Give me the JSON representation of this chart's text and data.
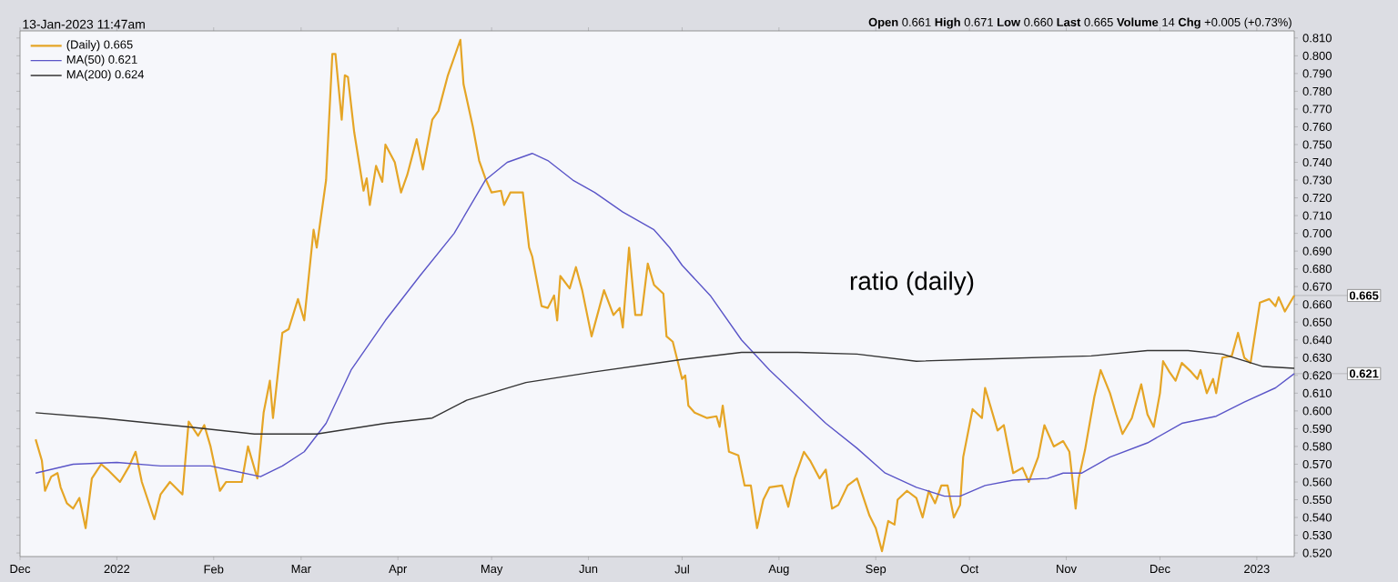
{
  "chart_data": {
    "type": "line",
    "subtitle": "13-Jan-2023 11:47am",
    "annotations": [
      "**Open** 0.661 **High** 0.671 **Low** 0.660 **Last** 0.665 **Volume** 14 **Chg** +0.005 (+0.73%)",
      "ratio (daily)",
      {
        "text": "0.665",
        "x": "2023-01-13",
        "y": 0.665
      },
      {
        "text": "0.621",
        "x": "2023-01-13",
        "y": 0.621
      }
    ],
    "xlim": [
      "2021-12-01",
      "2023-01-13"
    ],
    "xticks": [
      {
        "value": "2021-12-01",
        "label": "Dec"
      },
      {
        "value": "2022-01-01",
        "label": "2022"
      },
      {
        "value": "2022-02-01",
        "label": "Feb"
      },
      {
        "value": "2022-03-01",
        "label": "Mar"
      },
      {
        "value": "2022-04-01",
        "label": "Apr"
      },
      {
        "value": "2022-05-01",
        "label": "May"
      },
      {
        "value": "2022-06-01",
        "label": "Jun"
      },
      {
        "value": "2022-07-01",
        "label": "Jul"
      },
      {
        "value": "2022-08-01",
        "label": "Aug"
      },
      {
        "value": "2022-09-01",
        "label": "Sep"
      },
      {
        "value": "2022-10-01",
        "label": "Oct"
      },
      {
        "value": "2022-11-01",
        "label": "Nov"
      },
      {
        "value": "2022-12-01",
        "label": "Dec"
      },
      {
        "value": "2023-01-01",
        "label": "2023"
      }
    ],
    "ylim": [
      0.518,
      0.814
    ],
    "yticks": [
      {
        "value": 0.52,
        "label": "0.520"
      },
      {
        "value": 0.53,
        "label": "0.530"
      },
      {
        "value": 0.54,
        "label": "0.540"
      },
      {
        "value": 0.55,
        "label": "0.550"
      },
      {
        "value": 0.56,
        "label": "0.560"
      },
      {
        "value": 0.57,
        "label": "0.570"
      },
      {
        "value": 0.58,
        "label": "0.580"
      },
      {
        "value": 0.59,
        "label": "0.590"
      },
      {
        "value": 0.6,
        "label": "0.600"
      },
      {
        "value": 0.61,
        "label": "0.610"
      },
      {
        "value": 0.62,
        "label": "0.620"
      },
      {
        "value": 0.63,
        "label": "0.630"
      },
      {
        "value": 0.64,
        "label": "0.640"
      },
      {
        "value": 0.65,
        "label": "0.650"
      },
      {
        "value": 0.66,
        "label": "0.660"
      },
      {
        "value": 0.67,
        "label": "0.670"
      },
      {
        "value": 0.68,
        "label": "0.680"
      },
      {
        "value": 0.69,
        "label": "0.690"
      },
      {
        "value": 0.7,
        "label": "0.700"
      },
      {
        "value": 0.71,
        "label": "0.710"
      },
      {
        "value": 0.72,
        "label": "0.720"
      },
      {
        "value": 0.73,
        "label": "0.730"
      },
      {
        "value": 0.74,
        "label": "0.740"
      },
      {
        "value": 0.75,
        "label": "0.750"
      },
      {
        "value": 0.76,
        "label": "0.760"
      },
      {
        "value": 0.77,
        "label": "0.770"
      },
      {
        "value": 0.78,
        "label": "0.780"
      },
      {
        "value": 0.79,
        "label": "0.790"
      },
      {
        "value": 0.8,
        "label": "0.800"
      },
      {
        "value": 0.81,
        "label": "0.810"
      }
    ],
    "legend": "top left",
    "marker": "none",
    "line_style": "solid",
    "series": [
      {
        "name": "(Daily) 0.665",
        "color": "#e5a526",
        "x": [
          "2021-12-06",
          "2021-12-08",
          "2021-12-09",
          "2021-12-11",
          "2021-12-13",
          "2021-12-14",
          "2021-12-16",
          "2021-12-18",
          "2021-12-20",
          "2021-12-22",
          "2021-12-24",
          "2021-12-27",
          "2021-12-29",
          "2022-01-02",
          "2022-01-05",
          "2022-01-07",
          "2022-01-09",
          "2022-01-13",
          "2022-01-15",
          "2022-01-18",
          "2022-01-22",
          "2022-01-24",
          "2022-01-27",
          "2022-01-29",
          "2022-01-31",
          "2022-02-03",
          "2022-02-05",
          "2022-02-10",
          "2022-02-12",
          "2022-02-15",
          "2022-02-17",
          "2022-02-19",
          "2022-02-20",
          "2022-02-23",
          "2022-02-25",
          "2022-02-28",
          "2022-03-02",
          "2022-03-05",
          "2022-03-06",
          "2022-03-09",
          "2022-03-11",
          "2022-03-12",
          "2022-03-14",
          "2022-03-15",
          "2022-03-16",
          "2022-03-18",
          "2022-03-21",
          "2022-03-22",
          "2022-03-23",
          "2022-03-25",
          "2022-03-27",
          "2022-03-28",
          "2022-03-31",
          "2022-04-02",
          "2022-04-04",
          "2022-04-07",
          "2022-04-09",
          "2022-04-12",
          "2022-04-14",
          "2022-04-17",
          "2022-04-21",
          "2022-04-22",
          "2022-04-25",
          "2022-04-27",
          "2022-04-29",
          "2022-05-01",
          "2022-05-04",
          "2022-05-05",
          "2022-05-07",
          "2022-05-11",
          "2022-05-13",
          "2022-05-14",
          "2022-05-17",
          "2022-05-19",
          "2022-05-21",
          "2022-05-22",
          "2022-05-23",
          "2022-05-26",
          "2022-05-28",
          "2022-05-30",
          "2022-06-02",
          "2022-06-06",
          "2022-06-09",
          "2022-06-11",
          "2022-06-12",
          "2022-06-14",
          "2022-06-16",
          "2022-06-18",
          "2022-06-20",
          "2022-06-22",
          "2022-06-25",
          "2022-06-26",
          "2022-06-28",
          "2022-07-01",
          "2022-07-02",
          "2022-07-03",
          "2022-07-05",
          "2022-07-09",
          "2022-07-12",
          "2022-07-13",
          "2022-07-14",
          "2022-07-16",
          "2022-07-19",
          "2022-07-21",
          "2022-07-23",
          "2022-07-25",
          "2022-07-27",
          "2022-07-29",
          "2022-08-02",
          "2022-08-04",
          "2022-08-06",
          "2022-08-09",
          "2022-08-11",
          "2022-08-14",
          "2022-08-16",
          "2022-08-18",
          "2022-08-20",
          "2022-08-23",
          "2022-08-26",
          "2022-08-30",
          "2022-09-01",
          "2022-09-03",
          "2022-09-05",
          "2022-09-07",
          "2022-09-08",
          "2022-09-11",
          "2022-09-14",
          "2022-09-16",
          "2022-09-18",
          "2022-09-20",
          "2022-09-22",
          "2022-09-24",
          "2022-09-26",
          "2022-09-28",
          "2022-09-29",
          "2022-10-02",
          "2022-10-05",
          "2022-10-06",
          "2022-10-10",
          "2022-10-12",
          "2022-10-15",
          "2022-10-18",
          "2022-10-20",
          "2022-10-23",
          "2022-10-25",
          "2022-10-28",
          "2022-10-31",
          "2022-11-02",
          "2022-11-04",
          "2022-11-05",
          "2022-11-07",
          "2022-11-10",
          "2022-11-12",
          "2022-11-15",
          "2022-11-17",
          "2022-11-19",
          "2022-11-22",
          "2022-11-25",
          "2022-11-27",
          "2022-11-29",
          "2022-12-01",
          "2022-12-02",
          "2022-12-04",
          "2022-12-06",
          "2022-12-08",
          "2022-12-11",
          "2022-12-13",
          "2022-12-14",
          "2022-12-16",
          "2022-12-18",
          "2022-12-19",
          "2022-12-21",
          "2022-12-24",
          "2022-12-26",
          "2022-12-28",
          "2022-12-30",
          "2023-01-02",
          "2023-01-05",
          "2023-01-07",
          "2023-01-08",
          "2023-01-10",
          "2023-01-13"
        ],
        "values": [
          0.584,
          0.572,
          0.555,
          0.563,
          0.565,
          0.557,
          0.548,
          0.545,
          0.551,
          0.534,
          0.562,
          0.57,
          0.567,
          0.56,
          0.569,
          0.577,
          0.56,
          0.539,
          0.553,
          0.56,
          0.553,
          0.594,
          0.586,
          0.592,
          0.58,
          0.555,
          0.56,
          0.56,
          0.58,
          0.562,
          0.599,
          0.617,
          0.596,
          0.644,
          0.646,
          0.663,
          0.651,
          0.702,
          0.692,
          0.73,
          0.801,
          0.801,
          0.764,
          0.789,
          0.788,
          0.757,
          0.724,
          0.731,
          0.716,
          0.738,
          0.729,
          0.75,
          0.74,
          0.723,
          0.733,
          0.753,
          0.736,
          0.764,
          0.769,
          0.789,
          0.809,
          0.784,
          0.76,
          0.741,
          0.731,
          0.723,
          0.724,
          0.716,
          0.723,
          0.723,
          0.692,
          0.687,
          0.659,
          0.658,
          0.665,
          0.651,
          0.676,
          0.669,
          0.681,
          0.668,
          0.642,
          0.668,
          0.654,
          0.658,
          0.647,
          0.692,
          0.654,
          0.654,
          0.683,
          0.671,
          0.666,
          0.642,
          0.639,
          0.618,
          0.62,
          0.603,
          0.599,
          0.596,
          0.597,
          0.591,
          0.603,
          0.577,
          0.575,
          0.558,
          0.558,
          0.534,
          0.55,
          0.557,
          0.558,
          0.546,
          0.562,
          0.577,
          0.572,
          0.562,
          0.567,
          0.545,
          0.547,
          0.558,
          0.562,
          0.541,
          0.534,
          0.521,
          0.538,
          0.536,
          0.55,
          0.555,
          0.551,
          0.54,
          0.555,
          0.548,
          0.558,
          0.558,
          0.54,
          0.547,
          0.574,
          0.601,
          0.596,
          0.613,
          0.589,
          0.592,
          0.565,
          0.568,
          0.56,
          0.574,
          0.592,
          0.58,
          0.583,
          0.577,
          0.545,
          0.562,
          0.578,
          0.608,
          0.623,
          0.61,
          0.598,
          0.587,
          0.596,
          0.615,
          0.598,
          0.591,
          0.61,
          0.628,
          0.622,
          0.617,
          0.627,
          0.622,
          0.618,
          0.623,
          0.61,
          0.618,
          0.61,
          0.63,
          0.631,
          0.644,
          0.63,
          0.627,
          0.661,
          0.663,
          0.659,
          0.664,
          0.656,
          0.665
        ]
      },
      {
        "name": "MA(50) 0.621",
        "color": "#5a55c8",
        "x": [
          "2021-12-06",
          "2021-12-18",
          "2022-01-01",
          "2022-01-15",
          "2022-01-31",
          "2022-02-16",
          "2022-02-23",
          "2022-03-02",
          "2022-03-09",
          "2022-03-17",
          "2022-03-28",
          "2022-04-08",
          "2022-04-19",
          "2022-04-29",
          "2022-05-06",
          "2022-05-14",
          "2022-05-19",
          "2022-05-27",
          "2022-06-03",
          "2022-06-12",
          "2022-06-22",
          "2022-06-27",
          "2022-07-01",
          "2022-07-10",
          "2022-07-20",
          "2022-07-29",
          "2022-08-07",
          "2022-08-16",
          "2022-08-26",
          "2022-09-04",
          "2022-09-14",
          "2022-09-23",
          "2022-09-28",
          "2022-10-06",
          "2022-10-15",
          "2022-10-26",
          "2022-10-31",
          "2022-11-06",
          "2022-11-15",
          "2022-11-27",
          "2022-12-08",
          "2022-12-19",
          "2022-12-28",
          "2023-01-07",
          "2023-01-13"
        ],
        "values": [
          0.565,
          0.57,
          0.571,
          0.569,
          0.569,
          0.563,
          0.569,
          0.577,
          0.593,
          0.623,
          0.651,
          0.676,
          0.7,
          0.73,
          0.74,
          0.745,
          0.741,
          0.73,
          0.723,
          0.712,
          0.702,
          0.692,
          0.682,
          0.665,
          0.64,
          0.623,
          0.608,
          0.593,
          0.579,
          0.565,
          0.557,
          0.552,
          0.552,
          0.558,
          0.561,
          0.562,
          0.565,
          0.565,
          0.574,
          0.582,
          0.593,
          0.597,
          0.605,
          0.613,
          0.621
        ]
      },
      {
        "name": "MA(200) 0.624",
        "color": "#333333",
        "x": [
          "2021-12-06",
          "2021-12-27",
          "2022-01-24",
          "2022-02-14",
          "2022-03-06",
          "2022-03-28",
          "2022-04-12",
          "2022-04-23",
          "2022-05-12",
          "2022-06-03",
          "2022-06-27",
          "2022-07-01",
          "2022-07-20",
          "2022-08-07",
          "2022-08-26",
          "2022-09-14",
          "2022-10-02",
          "2022-10-21",
          "2022-11-09",
          "2022-11-27",
          "2022-12-10",
          "2022-12-21",
          "2023-01-03",
          "2023-01-13"
        ],
        "values": [
          0.599,
          0.596,
          0.591,
          0.587,
          0.587,
          0.593,
          0.596,
          0.606,
          0.616,
          0.622,
          0.628,
          0.629,
          0.633,
          0.633,
          0.632,
          0.628,
          0.629,
          0.63,
          0.631,
          0.634,
          0.634,
          0.632,
          0.625,
          0.624
        ]
      }
    ]
  }
}
